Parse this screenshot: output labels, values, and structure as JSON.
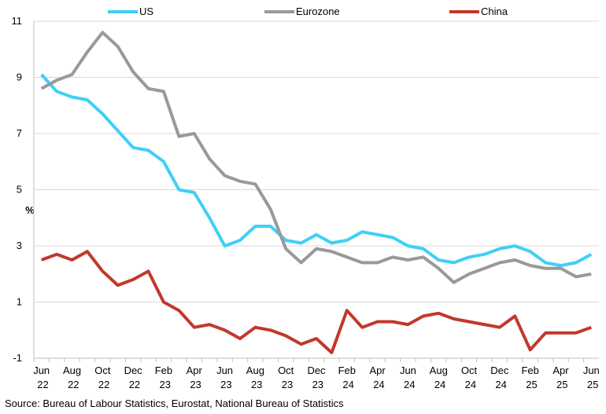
{
  "chart_data": {
    "type": "line",
    "y_label": "%",
    "source": "Source: Bureau of Labour Statistics, Eurostat, National Bureau of Statistics",
    "categories": [
      "Jun 22",
      null,
      "Aug 22",
      null,
      "Oct 22",
      null,
      "Dec 22",
      null,
      "Feb 23",
      null,
      "Apr 23",
      null,
      "Jun 23",
      null,
      "Aug 23",
      null,
      "Oct 23",
      null,
      "Dec 23",
      null,
      "Feb 24",
      null,
      "Apr 24",
      null,
      "Jun 24",
      null,
      "Aug 24",
      null,
      "Oct 24",
      null,
      "Dec 24",
      null,
      "Feb 25",
      null,
      "Apr 25",
      null,
      "Jun 25"
    ],
    "ylim": [
      -1,
      11
    ],
    "yticks": [
      -1,
      1,
      3,
      5,
      7,
      9,
      11
    ],
    "grid": true,
    "legend": "top",
    "series": [
      {
        "name": "US",
        "color": "#3fd0f5",
        "values": [
          9.1,
          8.5,
          8.3,
          8.2,
          7.7,
          7.1,
          6.5,
          6.4,
          6.0,
          5.0,
          4.9,
          4.0,
          3.0,
          3.2,
          3.7,
          3.7,
          3.2,
          3.1,
          3.4,
          3.1,
          3.2,
          3.5,
          3.4,
          3.3,
          3.0,
          2.9,
          2.5,
          2.4,
          2.6,
          2.7,
          2.9,
          3.0,
          2.8,
          2.4,
          2.3,
          2.4,
          2.7
        ]
      },
      {
        "name": "Eurozone",
        "color": "#999999",
        "values": [
          8.6,
          8.9,
          9.1,
          9.9,
          10.6,
          10.1,
          9.2,
          8.6,
          8.5,
          6.9,
          7.0,
          6.1,
          5.5,
          5.3,
          5.2,
          4.3,
          2.9,
          2.4,
          2.9,
          2.8,
          2.6,
          2.4,
          2.4,
          2.6,
          2.5,
          2.6,
          2.2,
          1.7,
          2.0,
          2.2,
          2.4,
          2.5,
          2.3,
          2.2,
          2.2,
          1.9,
          2.0
        ]
      },
      {
        "name": "China",
        "color": "#c0392b",
        "values": [
          2.5,
          2.7,
          2.5,
          2.8,
          2.1,
          1.6,
          1.8,
          2.1,
          1.0,
          0.7,
          0.1,
          0.2,
          0.0,
          -0.3,
          0.1,
          0.0,
          -0.2,
          -0.5,
          -0.3,
          -0.8,
          0.7,
          0.1,
          0.3,
          0.3,
          0.2,
          0.5,
          0.6,
          0.4,
          0.3,
          0.2,
          0.1,
          0.5,
          -0.7,
          -0.1,
          -0.1,
          -0.1,
          0.1
        ]
      }
    ]
  }
}
